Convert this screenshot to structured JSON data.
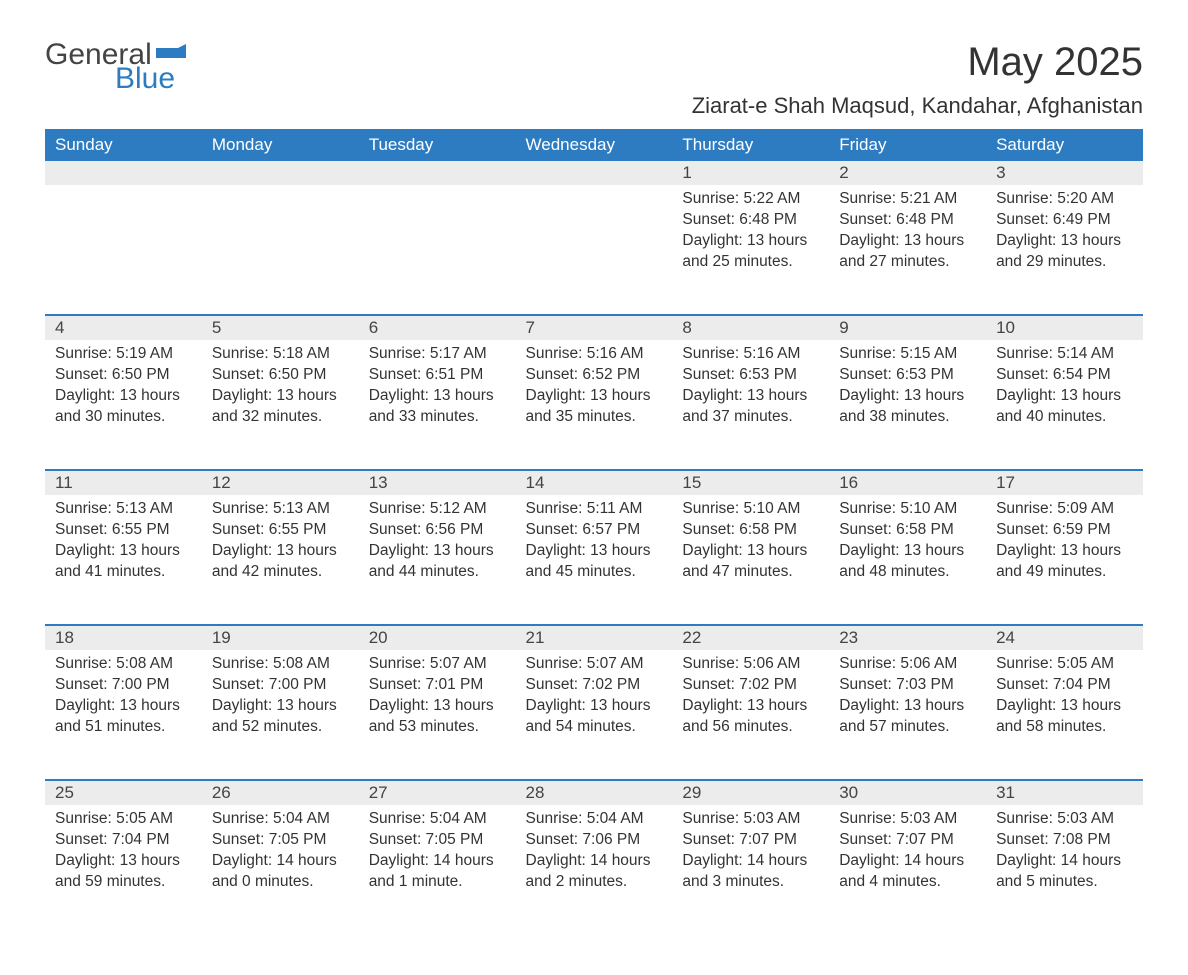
{
  "logo": {
    "text_general": "General",
    "text_blue": "Blue",
    "color_blue": "#2d7cc1",
    "color_gray": "#444444"
  },
  "title": "May 2025",
  "location": "Ziarat-e Shah Maqsud, Kandahar, Afghanistan",
  "colors": {
    "header_bg": "#2d7cc1",
    "header_text": "#ffffff",
    "daynum_bg": "#ececec",
    "row_border": "#2d7cc1",
    "body_text": "#333333",
    "page_bg": "#ffffff"
  },
  "fonts": {
    "title_size_pt": 30,
    "location_size_pt": 17,
    "header_size_pt": 13,
    "cell_size_pt": 12
  },
  "day_headers": [
    "Sunday",
    "Monday",
    "Tuesday",
    "Wednesday",
    "Thursday",
    "Friday",
    "Saturday"
  ],
  "weeks": [
    [
      null,
      null,
      null,
      null,
      {
        "n": "1",
        "sunrise": "5:22 AM",
        "sunset": "6:48 PM",
        "daylight": "13 hours and 25 minutes."
      },
      {
        "n": "2",
        "sunrise": "5:21 AM",
        "sunset": "6:48 PM",
        "daylight": "13 hours and 27 minutes."
      },
      {
        "n": "3",
        "sunrise": "5:20 AM",
        "sunset": "6:49 PM",
        "daylight": "13 hours and 29 minutes."
      }
    ],
    [
      {
        "n": "4",
        "sunrise": "5:19 AM",
        "sunset": "6:50 PM",
        "daylight": "13 hours and 30 minutes."
      },
      {
        "n": "5",
        "sunrise": "5:18 AM",
        "sunset": "6:50 PM",
        "daylight": "13 hours and 32 minutes."
      },
      {
        "n": "6",
        "sunrise": "5:17 AM",
        "sunset": "6:51 PM",
        "daylight": "13 hours and 33 minutes."
      },
      {
        "n": "7",
        "sunrise": "5:16 AM",
        "sunset": "6:52 PM",
        "daylight": "13 hours and 35 minutes."
      },
      {
        "n": "8",
        "sunrise": "5:16 AM",
        "sunset": "6:53 PM",
        "daylight": "13 hours and 37 minutes."
      },
      {
        "n": "9",
        "sunrise": "5:15 AM",
        "sunset": "6:53 PM",
        "daylight": "13 hours and 38 minutes."
      },
      {
        "n": "10",
        "sunrise": "5:14 AM",
        "sunset": "6:54 PM",
        "daylight": "13 hours and 40 minutes."
      }
    ],
    [
      {
        "n": "11",
        "sunrise": "5:13 AM",
        "sunset": "6:55 PM",
        "daylight": "13 hours and 41 minutes."
      },
      {
        "n": "12",
        "sunrise": "5:13 AM",
        "sunset": "6:55 PM",
        "daylight": "13 hours and 42 minutes."
      },
      {
        "n": "13",
        "sunrise": "5:12 AM",
        "sunset": "6:56 PM",
        "daylight": "13 hours and 44 minutes."
      },
      {
        "n": "14",
        "sunrise": "5:11 AM",
        "sunset": "6:57 PM",
        "daylight": "13 hours and 45 minutes."
      },
      {
        "n": "15",
        "sunrise": "5:10 AM",
        "sunset": "6:58 PM",
        "daylight": "13 hours and 47 minutes."
      },
      {
        "n": "16",
        "sunrise": "5:10 AM",
        "sunset": "6:58 PM",
        "daylight": "13 hours and 48 minutes."
      },
      {
        "n": "17",
        "sunrise": "5:09 AM",
        "sunset": "6:59 PM",
        "daylight": "13 hours and 49 minutes."
      }
    ],
    [
      {
        "n": "18",
        "sunrise": "5:08 AM",
        "sunset": "7:00 PM",
        "daylight": "13 hours and 51 minutes."
      },
      {
        "n": "19",
        "sunrise": "5:08 AM",
        "sunset": "7:00 PM",
        "daylight": "13 hours and 52 minutes."
      },
      {
        "n": "20",
        "sunrise": "5:07 AM",
        "sunset": "7:01 PM",
        "daylight": "13 hours and 53 minutes."
      },
      {
        "n": "21",
        "sunrise": "5:07 AM",
        "sunset": "7:02 PM",
        "daylight": "13 hours and 54 minutes."
      },
      {
        "n": "22",
        "sunrise": "5:06 AM",
        "sunset": "7:02 PM",
        "daylight": "13 hours and 56 minutes."
      },
      {
        "n": "23",
        "sunrise": "5:06 AM",
        "sunset": "7:03 PM",
        "daylight": "13 hours and 57 minutes."
      },
      {
        "n": "24",
        "sunrise": "5:05 AM",
        "sunset": "7:04 PM",
        "daylight": "13 hours and 58 minutes."
      }
    ],
    [
      {
        "n": "25",
        "sunrise": "5:05 AM",
        "sunset": "7:04 PM",
        "daylight": "13 hours and 59 minutes."
      },
      {
        "n": "26",
        "sunrise": "5:04 AM",
        "sunset": "7:05 PM",
        "daylight": "14 hours and 0 minutes."
      },
      {
        "n": "27",
        "sunrise": "5:04 AM",
        "sunset": "7:05 PM",
        "daylight": "14 hours and 1 minute."
      },
      {
        "n": "28",
        "sunrise": "5:04 AM",
        "sunset": "7:06 PM",
        "daylight": "14 hours and 2 minutes."
      },
      {
        "n": "29",
        "sunrise": "5:03 AM",
        "sunset": "7:07 PM",
        "daylight": "14 hours and 3 minutes."
      },
      {
        "n": "30",
        "sunrise": "5:03 AM",
        "sunset": "7:07 PM",
        "daylight": "14 hours and 4 minutes."
      },
      {
        "n": "31",
        "sunrise": "5:03 AM",
        "sunset": "7:08 PM",
        "daylight": "14 hours and 5 minutes."
      }
    ]
  ],
  "labels": {
    "sunrise": "Sunrise: ",
    "sunset": "Sunset: ",
    "daylight": "Daylight: "
  }
}
